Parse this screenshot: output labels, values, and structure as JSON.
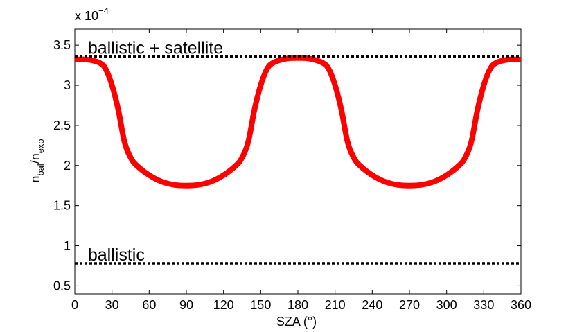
{
  "chart_data": {
    "type": "line",
    "title": "",
    "xlabel": "SZA (°)",
    "ylabel": {
      "base1": "n",
      "sub1": "bal",
      "slash": "/n",
      "sub2": "exo"
    },
    "y_multiplier": {
      "prefix": "x 10",
      "exponent": "−4"
    },
    "xlim": [
      0,
      360
    ],
    "ylim": [
      0.4,
      3.7
    ],
    "x_ticks": [
      0,
      30,
      60,
      90,
      120,
      150,
      180,
      210,
      240,
      270,
      300,
      330,
      360
    ],
    "x_tick_labels": [
      "0",
      "30",
      "60",
      "90",
      "120",
      "150",
      "180",
      "210",
      "240",
      "270",
      "300",
      "330",
      "360"
    ],
    "y_ticks": [
      0.5,
      1,
      1.5,
      2,
      2.5,
      3,
      3.5
    ],
    "y_tick_labels": [
      "0.5",
      "1",
      "1.5",
      "2",
      "2.5",
      "3",
      "3.5"
    ],
    "grid": false,
    "series": [
      {
        "color": "#ff0000",
        "style": "solid",
        "x": [
          0,
          10,
          20,
          25,
          30,
          35,
          40,
          45,
          50,
          60,
          70,
          80,
          90,
          100,
          110,
          120,
          130,
          135,
          140,
          145,
          150,
          155,
          160,
          170,
          180,
          190,
          200,
          205,
          210,
          215,
          220,
          225,
          230,
          240,
          250,
          260,
          270,
          280,
          290,
          300,
          310,
          315,
          320,
          325,
          330,
          335,
          340,
          350,
          360
        ],
        "y": [
          3.32,
          3.32,
          3.28,
          3.2,
          3.0,
          2.7,
          2.3,
          2.1,
          2.0,
          1.88,
          1.8,
          1.76,
          1.75,
          1.76,
          1.8,
          1.88,
          2.0,
          2.1,
          2.3,
          2.7,
          3.0,
          3.2,
          3.28,
          3.33,
          3.34,
          3.33,
          3.28,
          3.2,
          3.0,
          2.7,
          2.3,
          2.1,
          2.0,
          1.88,
          1.8,
          1.76,
          1.75,
          1.76,
          1.8,
          1.88,
          2.0,
          2.1,
          2.3,
          2.7,
          3.0,
          3.2,
          3.28,
          3.32,
          3.32
        ]
      },
      {
        "name": "ballistic + satellite",
        "color": "#000000",
        "style": "dotted",
        "x": [
          0,
          360
        ],
        "y": [
          3.36,
          3.36
        ]
      },
      {
        "name": "ballistic",
        "color": "#000000",
        "style": "dotted",
        "x": [
          0,
          360
        ],
        "y": [
          0.78,
          0.78
        ]
      }
    ],
    "annotations": [
      {
        "text": "ballistic + satellite",
        "x": 10,
        "y": 3.43
      },
      {
        "text": "ballistic",
        "x": 10,
        "y": 0.85
      }
    ]
  }
}
